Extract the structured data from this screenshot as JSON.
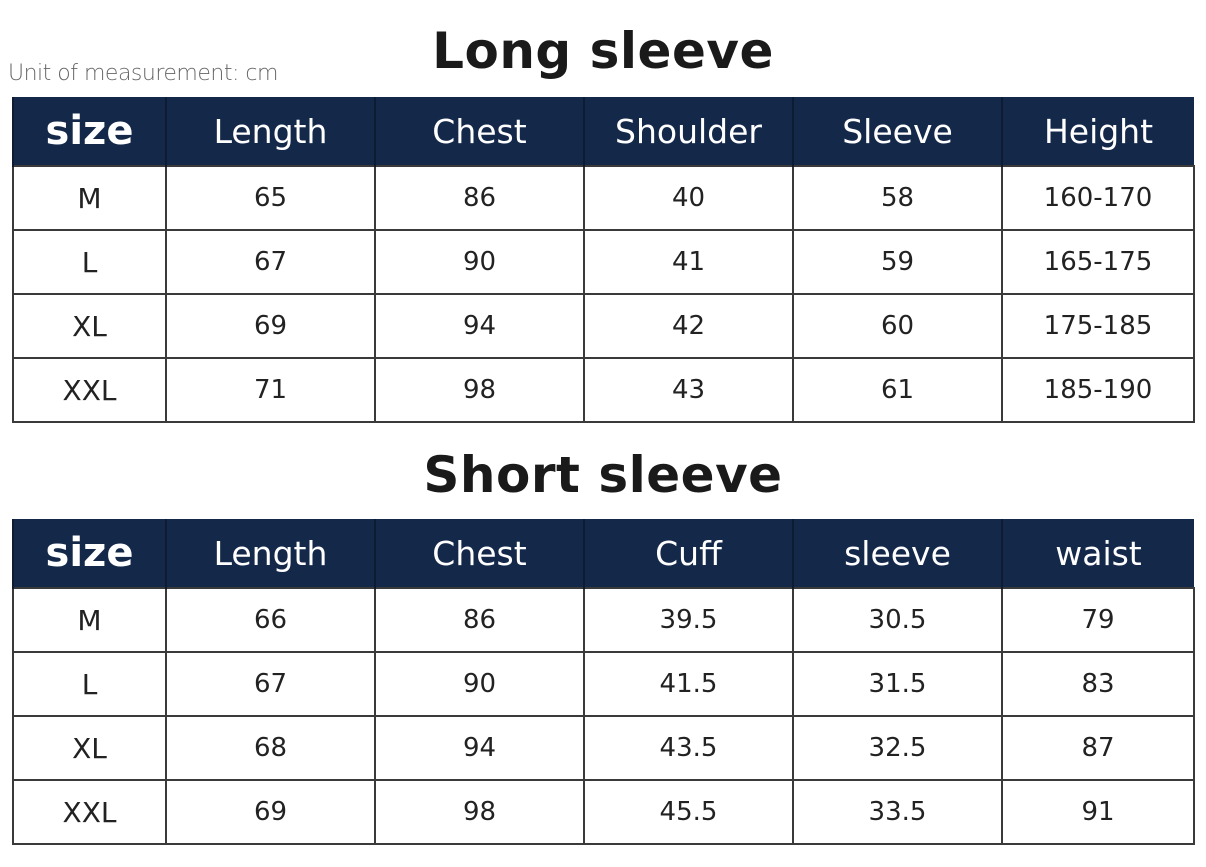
{
  "unit_label": "Unit of measurement: cm",
  "colors": {
    "header_bg": "#14284a",
    "header_text": "#ffffff"
  },
  "tables": [
    {
      "title": "Long sleeve",
      "headers": [
        "size",
        "Length",
        "Chest",
        "Shoulder",
        "Sleeve",
        "Height"
      ],
      "rows": [
        [
          "M",
          "65",
          "86",
          "40",
          "58",
          "160-170"
        ],
        [
          "L",
          "67",
          "90",
          "41",
          "59",
          "165-175"
        ],
        [
          "XL",
          "69",
          "94",
          "42",
          "60",
          "175-185"
        ],
        [
          "XXL",
          "71",
          "98",
          "43",
          "61",
          "185-190"
        ]
      ]
    },
    {
      "title": "Short sleeve",
      "headers": [
        "size",
        "Length",
        "Chest",
        "Cuff",
        "sleeve",
        "waist"
      ],
      "rows": [
        [
          "M",
          "66",
          "86",
          "39.5",
          "30.5",
          "79"
        ],
        [
          "L",
          "67",
          "90",
          "41.5",
          "31.5",
          "83"
        ],
        [
          "XL",
          "68",
          "94",
          "43.5",
          "32.5",
          "87"
        ],
        [
          "XXL",
          "69",
          "98",
          "45.5",
          "33.5",
          "91"
        ]
      ]
    }
  ]
}
